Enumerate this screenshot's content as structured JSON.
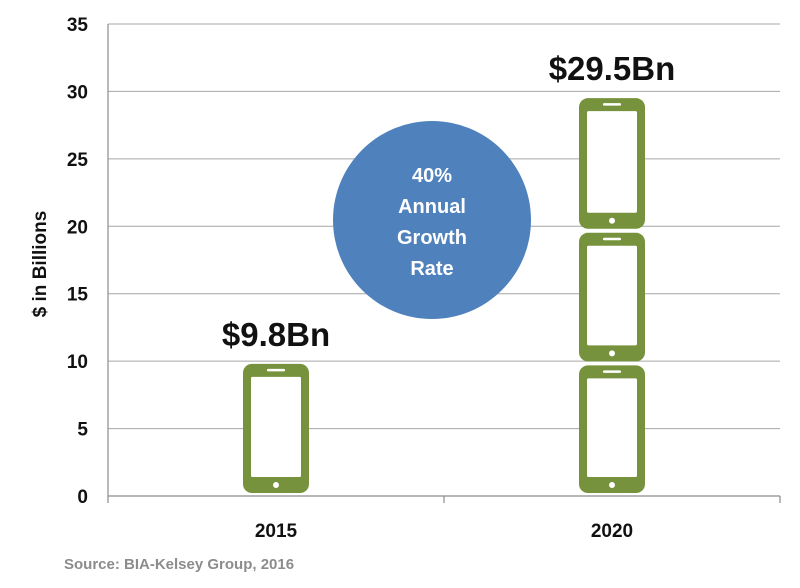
{
  "chart_data": {
    "type": "bar",
    "categories": [
      "2015",
      "2020"
    ],
    "values": [
      9.8,
      29.5
    ],
    "value_labels": [
      "$9.8Bn",
      "$29.5Bn"
    ],
    "ylabel": "$ in Billions",
    "xlabel": "",
    "ylim": [
      0,
      35
    ],
    "yticks": [
      0,
      5,
      10,
      15,
      20,
      25,
      30,
      35
    ],
    "grid": true,
    "units_per_icon": 9.8,
    "icon": "smartphone-icon",
    "annotation": [
      "40%",
      "Annual",
      "Growth",
      "Rate"
    ],
    "source": "Source: BIA-Kelsey Group, 2016"
  },
  "colors": {
    "phone": "#76923c",
    "phone_screen": "#ffffff",
    "bubble": "#4f81bd",
    "grid": "#a6a6a6",
    "axis": "#8c8c8c",
    "text": "#111111",
    "source": "#8c8c8c"
  }
}
